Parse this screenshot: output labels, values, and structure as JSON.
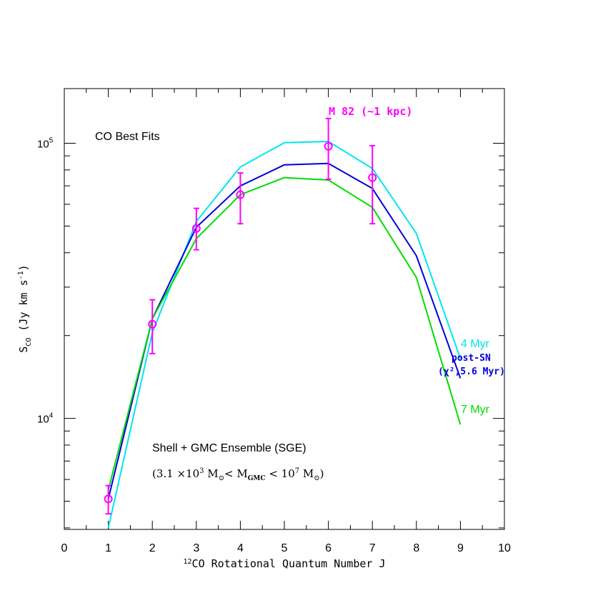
{
  "chart_data": {
    "type": "line",
    "title": "CO Best Fits",
    "subtitle": "Shell + GMC Ensemble (SGE)",
    "mass_range": {
      "open": "(3.1 ×10",
      "exp1": "3",
      "m": " M",
      "sun1": "⊙",
      "lt": "< M",
      "gmc": "GMC",
      "lt2": " < 10",
      "exp2": "7",
      "m2": " M",
      "sun2": "⊙",
      "close": ")"
    },
    "xlabel": {
      "sup": "12",
      "text": "CO Rotational Quantum Number J"
    },
    "ylabel": {
      "main": "S",
      "sub": "CO",
      "units": " (Jy km s",
      "unit_sup": "-1",
      "close": ")"
    },
    "xlim": [
      0,
      10
    ],
    "ylim": [
      3950,
      158000
    ],
    "y_scale": "log",
    "x_ticks": [
      "0",
      "1",
      "2",
      "3",
      "4",
      "5",
      "6",
      "7",
      "8",
      "9",
      "10"
    ],
    "y_ticks": [
      {
        "value": 10000,
        "base": "10",
        "exp": "4"
      },
      {
        "value": 100000,
        "base": "10",
        "exp": "5"
      }
    ],
    "series": [
      {
        "name": "4 Myr",
        "color": "#00e5ee",
        "x": [
          1,
          2,
          3,
          4,
          5,
          6,
          7,
          8,
          9
        ],
        "y": [
          4000,
          20500,
          52000,
          82000,
          100500,
          101500,
          81000,
          47000,
          16500
        ]
      },
      {
        "name": "post-SN",
        "name_line2": "(χ²,5.6 Myr)",
        "color": "#0000dd",
        "x": [
          1,
          2,
          3,
          4,
          5,
          6,
          7,
          8,
          9
        ],
        "y": [
          5100,
          23000,
          49500,
          70000,
          83500,
          84500,
          68500,
          39000,
          14000
        ]
      },
      {
        "name": "7 Myr",
        "color": "#00dd00",
        "x": [
          1,
          2,
          3,
          4,
          5,
          6,
          7,
          8,
          9
        ],
        "y": [
          5500,
          23000,
          45000,
          65000,
          75000,
          73500,
          58500,
          32500,
          9500
        ]
      }
    ],
    "observations": {
      "name": "M 82 (~1 kpc)",
      "color": "#ff00ff",
      "x": [
        1,
        2,
        3,
        4,
        6,
        7
      ],
      "y": [
        5100,
        22000,
        49000,
        65000,
        97500,
        75000
      ],
      "y_low": [
        4500,
        17200,
        41000,
        51000,
        74000,
        51000
      ],
      "y_high": [
        5700,
        27000,
        58000,
        78000,
        123000,
        98000
      ]
    }
  }
}
